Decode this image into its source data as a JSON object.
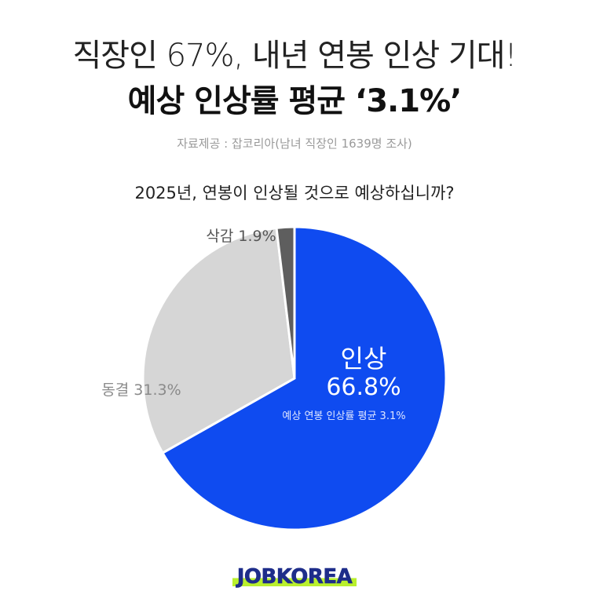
{
  "header": {
    "title_line1": "직장인 67%, 내년 연봉 인상 기대!",
    "title_line2": "예상 인상률 평균 ‘3.1%’",
    "source": "자료제공 : 잡코리아(남녀 직장인 1639명 조사)",
    "question": "2025년, 연봉이 인상될 것으로 예상하십니까?"
  },
  "chart_data": {
    "type": "pie",
    "start": "12 o'clock",
    "direction": "clockwise",
    "slices": [
      {
        "label": "인상",
        "value": 66.8,
        "display": "66.8%",
        "color": "#0f4bf0"
      },
      {
        "label": "동결",
        "value": 31.3,
        "display": "동결 31.3%",
        "color": "#d6d6d6"
      },
      {
        "label": "삭감",
        "value": 1.9,
        "display": "삭감 1.9%",
        "color": "#5e5e5e"
      }
    ],
    "annotation": "예상 연봉 인상률 평균 3.1%"
  },
  "footer": {
    "logo": "JOBKOREA"
  }
}
